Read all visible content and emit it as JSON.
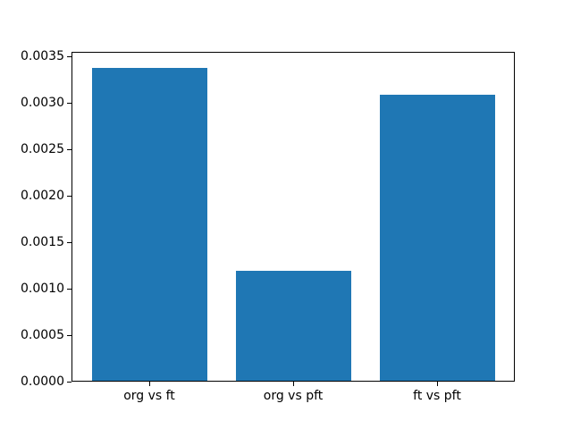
{
  "figure": {
    "background": "#ffffff",
    "title": ""
  },
  "chart_data": {
    "type": "bar",
    "title": "",
    "categories": [
      "org vs ft",
      "org vs pft",
      "ft vs pft"
    ],
    "values": [
      0.00338,
      0.00119,
      0.00309
    ],
    "xlabel": "",
    "ylabel": "",
    "ylim": [
      0,
      0.00355
    ],
    "yticks": [
      0.0,
      0.0005,
      0.001,
      0.0015,
      0.002,
      0.0025,
      0.003,
      0.0035
    ],
    "ytick_decimals": 4,
    "xtick_labels": [
      "org vs ft",
      "org vs pft",
      "ft vs pft"
    ],
    "bar_color": "#1f77b4",
    "axis_color": "#000000",
    "text_color": "#000000",
    "grid": false,
    "legend": null,
    "bar_width_fraction": 0.8,
    "x_margin_fraction": 0.05
  }
}
